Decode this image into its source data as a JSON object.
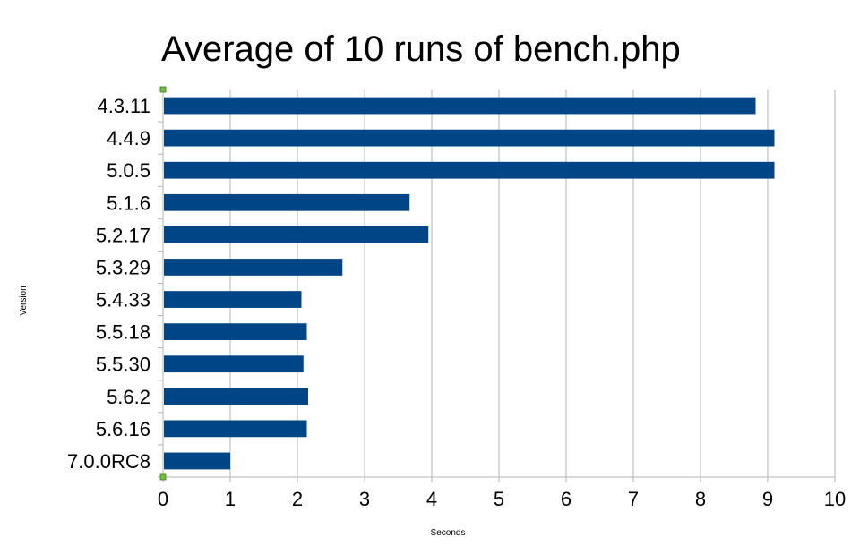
{
  "chart_data": {
    "type": "bar",
    "orientation": "horizontal",
    "title": "Average of 10 runs of bench.php",
    "xlabel": "Seconds",
    "ylabel": "Version",
    "categories": [
      "4.3.11",
      "4.4.9",
      "5.0.5",
      "5.1.6",
      "5.2.17",
      "5.3.29",
      "5.4.33",
      "5.5.18",
      "5.5.30",
      "5.6.2",
      "5.6.16",
      "7.0.0RC8"
    ],
    "values": [
      8.82,
      9.1,
      9.1,
      3.67,
      3.95,
      2.67,
      2.06,
      2.14,
      2.09,
      2.16,
      2.14,
      1.0
    ],
    "xlim": [
      0,
      10
    ],
    "xticks": [
      "0",
      "1",
      "2",
      "3",
      "4",
      "5",
      "6",
      "7",
      "8",
      "9",
      "10"
    ],
    "grid": "vertical",
    "legend": "none",
    "bar_color": "#004586",
    "grid_color": "#b3b3b3",
    "selection_handle_color": "#72bf44"
  }
}
